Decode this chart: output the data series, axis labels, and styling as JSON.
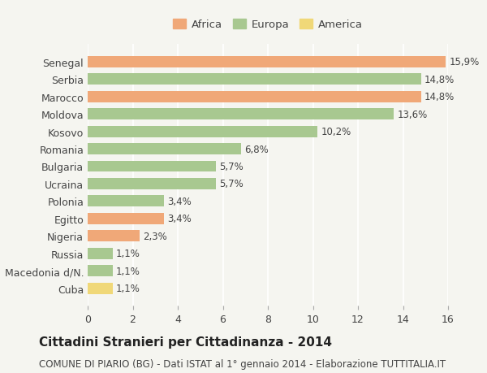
{
  "countries": [
    "Senegal",
    "Serbia",
    "Marocco",
    "Moldova",
    "Kosovo",
    "Romania",
    "Bulgaria",
    "Ucraina",
    "Polonia",
    "Egitto",
    "Nigeria",
    "Russia",
    "Macedonia d/N.",
    "Cuba"
  ],
  "values": [
    15.9,
    14.8,
    14.8,
    13.6,
    10.2,
    6.8,
    5.7,
    5.7,
    3.4,
    3.4,
    2.3,
    1.1,
    1.1,
    1.1
  ],
  "labels": [
    "15,9%",
    "14,8%",
    "14,8%",
    "13,6%",
    "10,2%",
    "6,8%",
    "5,7%",
    "5,7%",
    "3,4%",
    "3,4%",
    "2,3%",
    "1,1%",
    "1,1%",
    "1,1%"
  ],
  "continents": [
    "Africa",
    "Europa",
    "Africa",
    "Europa",
    "Europa",
    "Europa",
    "Europa",
    "Europa",
    "Europa",
    "Africa",
    "Africa",
    "Europa",
    "Europa",
    "America"
  ],
  "colors": {
    "Africa": "#F0A878",
    "Europa": "#A8C890",
    "America": "#F0D878"
  },
  "legend_order": [
    "Africa",
    "Europa",
    "America"
  ],
  "xlim": [
    0,
    16
  ],
  "xticks": [
    0,
    2,
    4,
    6,
    8,
    10,
    12,
    14,
    16
  ],
  "background_color": "#f5f5f0",
  "title": "Cittadini Stranieri per Cittadinanza - 2014",
  "subtitle": "COMUNE DI PIARIO (BG) - Dati ISTAT al 1° gennaio 2014 - Elaborazione TUTTITALIA.IT",
  "title_fontsize": 11,
  "subtitle_fontsize": 8.5,
  "bar_height": 0.65,
  "label_fontsize": 8.5,
  "tick_fontsize": 9
}
